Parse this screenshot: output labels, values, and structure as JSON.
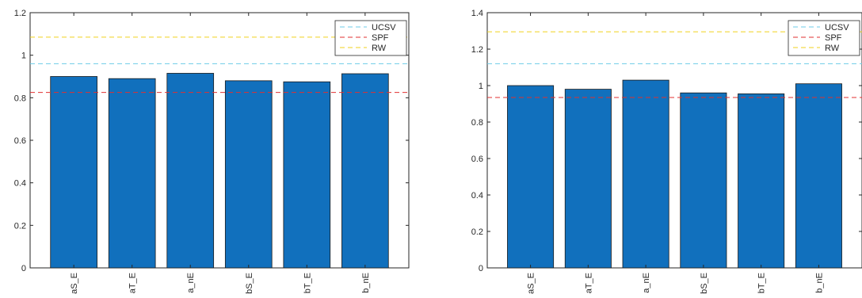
{
  "chart_data": [
    {
      "type": "bar",
      "title": "",
      "xlabel": "",
      "ylabel": "",
      "categories": [
        "aS_E",
        "aT_E",
        "a_nE",
        "bS_E",
        "bT_E",
        "b_nE"
      ],
      "values": [
        0.9,
        0.89,
        0.915,
        0.88,
        0.875,
        0.913
      ],
      "ylim": [
        0,
        1.2
      ],
      "yticks": [
        "0",
        "0.2",
        "0.4",
        "0.6",
        "0.8",
        "1",
        "1.2"
      ],
      "bar_color": "#1170bd",
      "grid": false,
      "legend_position": "top-right",
      "reference_lines": [
        {
          "name": "UCSV",
          "value": 0.96,
          "color": "#6ccbe8"
        },
        {
          "name": "SPF",
          "value": 0.825,
          "color": "#e03030"
        },
        {
          "name": "RW",
          "value": 1.085,
          "color": "#f0d21e"
        }
      ]
    },
    {
      "type": "bar",
      "title": "",
      "xlabel": "",
      "ylabel": "",
      "categories": [
        "aS_E",
        "aT_E",
        "a_nE",
        "bS_E",
        "bT_E",
        "b_nE"
      ],
      "values": [
        1.0,
        0.98,
        1.03,
        0.96,
        0.955,
        1.01
      ],
      "ylim": [
        0,
        1.4
      ],
      "yticks": [
        "0",
        "0.2",
        "0.4",
        "0.6",
        "0.8",
        "1",
        "1.2",
        "1.4"
      ],
      "bar_color": "#1170bd",
      "grid": false,
      "legend_position": "top-right",
      "reference_lines": [
        {
          "name": "UCSV",
          "value": 1.12,
          "color": "#6ccbe8"
        },
        {
          "name": "SPF",
          "value": 0.935,
          "color": "#e03030"
        },
        {
          "name": "RW",
          "value": 1.295,
          "color": "#f0d21e"
        }
      ]
    }
  ]
}
